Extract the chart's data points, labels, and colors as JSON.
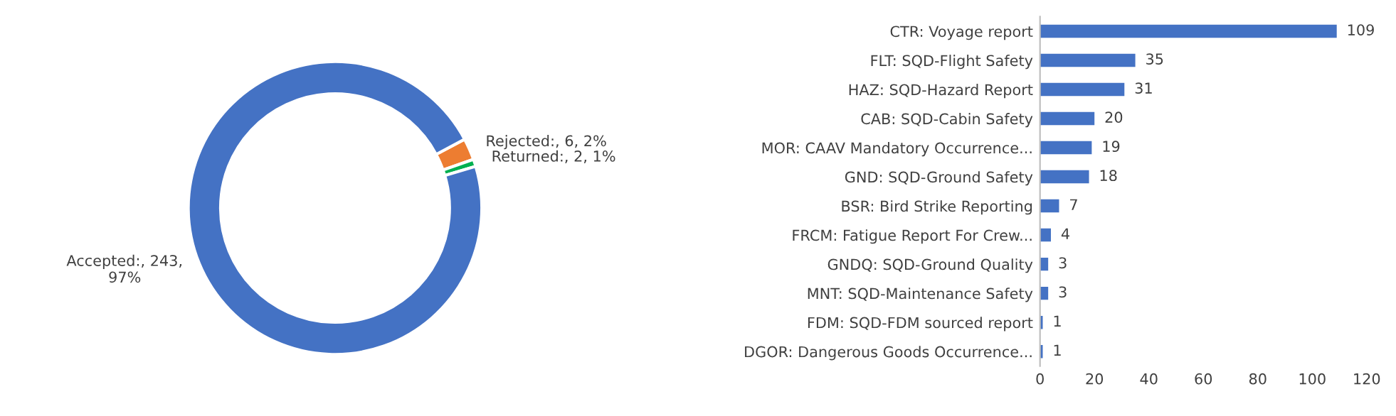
{
  "chart_data": [
    {
      "type": "donut",
      "categories": [
        "Rejected",
        "Returned",
        "Accepted"
      ],
      "values": [
        6,
        2,
        243
      ],
      "colors": [
        "#ed7d31",
        "#00b050",
        "#4472c4"
      ],
      "value_labels": [
        ":, 6, 2%",
        ":, 2, 1%",
        ":, 243,\n97%"
      ]
    },
    {
      "type": "bar",
      "orientation": "horizontal",
      "categories": [
        "CTR: Voyage report",
        "FLT: SQD-Flight Safety",
        "HAZ: SQD-Hazard Report",
        "CAB: SQD-Cabin Safety",
        "MOR: CAAV Mandatory Occurrence...",
        "GND: SQD-Ground Safety",
        "BSR: Bird Strike Reporting",
        "FRCM: Fatigue Report For Crew...",
        "GNDQ: SQD-Ground Quality",
        "MNT: SQD-Maintenance Safety",
        "FDM: SQD-FDM sourced report",
        "DGOR: Dangerous Goods Occurrence..."
      ],
      "values": [
        109,
        35,
        31,
        20,
        19,
        18,
        7,
        4,
        3,
        3,
        1,
        1
      ],
      "color": "#4472c4",
      "xlim": [
        0,
        120
      ],
      "xticks": [
        0,
        20,
        40,
        60,
        80,
        100,
        120
      ],
      "data_labels": true,
      "grid": false
    }
  ]
}
